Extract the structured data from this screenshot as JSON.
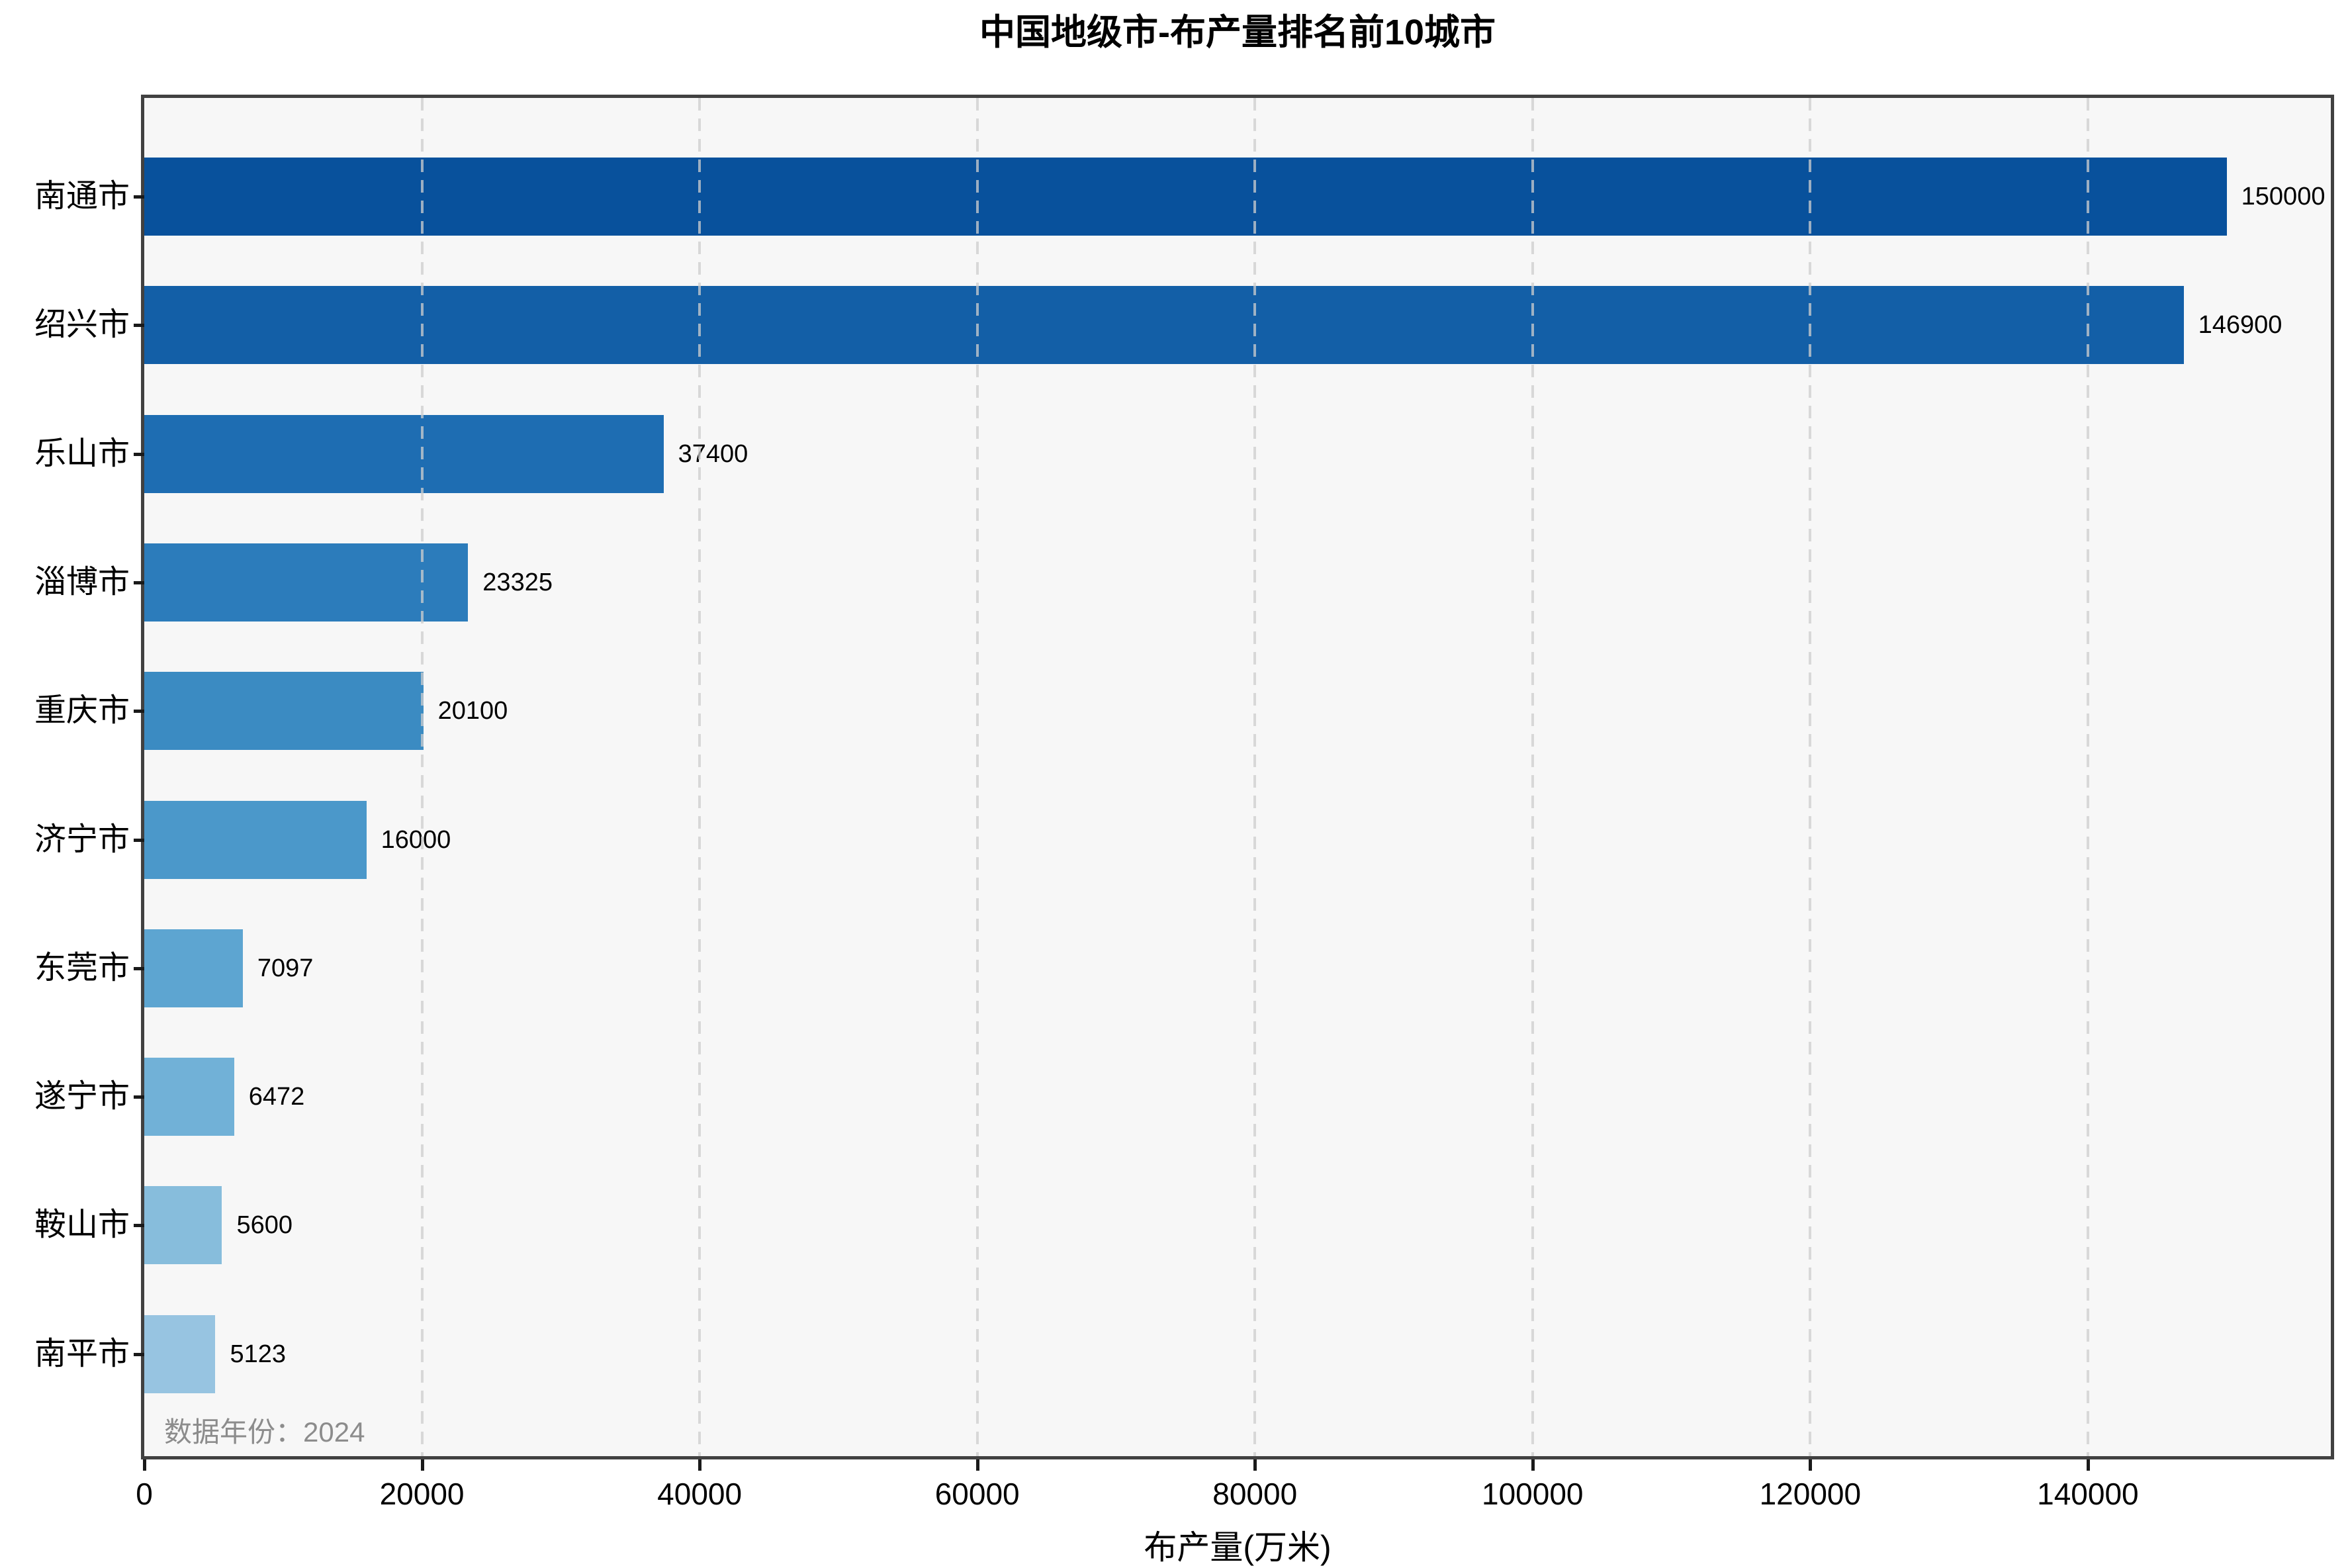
{
  "page": {
    "background": "#ffffff"
  },
  "chart_data": {
    "type": "bar",
    "orientation": "horizontal",
    "title": "中国地级市-布产量排名前10城市",
    "xlabel": "布产量(万米)",
    "ylabel": "",
    "categories": [
      "南通市",
      "绍兴市",
      "乐山市",
      "淄博市",
      "重庆市",
      "济宁市",
      "东莞市",
      "遂宁市",
      "鞍山市",
      "南平市"
    ],
    "values": [
      150000,
      146900,
      37400,
      23325,
      20100,
      16000,
      7097,
      6472,
      5600,
      5123
    ],
    "value_labels": [
      "150000",
      "146900",
      "37400",
      "23325",
      "20100",
      "16000",
      "7097",
      "6472",
      "5600",
      "5123"
    ],
    "bar_colors": [
      "#08519c",
      "#135fa7",
      "#1e6db2",
      "#2c7cbb",
      "#3b8bc2",
      "#4b98ca",
      "#5da5d1",
      "#71b1d7",
      "#87bddc",
      "#97c4e1"
    ],
    "x_ticks": [
      0,
      20000,
      40000,
      60000,
      80000,
      100000,
      120000,
      140000
    ],
    "x_tick_labels": [
      "0",
      "20000",
      "40000",
      "60000",
      "80000",
      "100000",
      "120000",
      "140000"
    ],
    "xlim": [
      0,
      157500
    ],
    "grid": "vertical-dashed",
    "legend_position": "none",
    "annotation": "数据年份：2024",
    "colors": {
      "plot_bg": "#f7f7f7",
      "frame": "#414141",
      "grid": "rgba(206,206,206,0.75)",
      "annotation_text": "#8c8c8c",
      "tick": "#1a1a1a",
      "label_text": "#000000"
    }
  }
}
